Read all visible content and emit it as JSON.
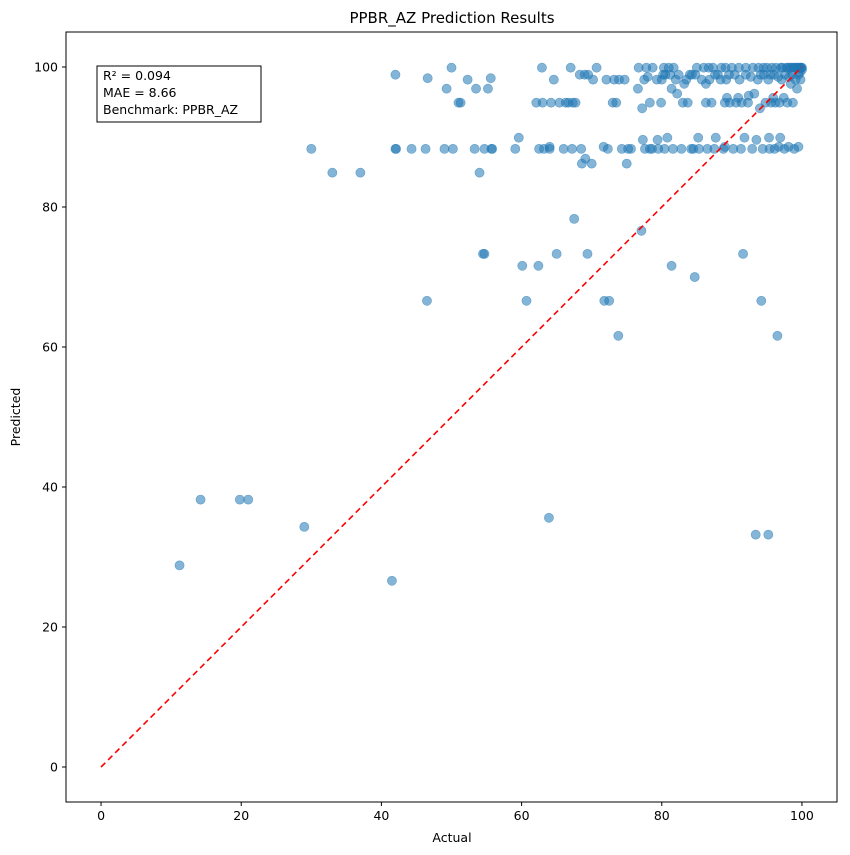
{
  "chart_data": {
    "type": "scatter",
    "title": "PPBR_AZ Prediction Results",
    "xlabel": "Actual",
    "ylabel": "Predicted",
    "xlim": [
      -5,
      105
    ],
    "ylim": [
      -5,
      105
    ],
    "xticks": [
      0,
      20,
      40,
      60,
      80,
      100
    ],
    "yticks": [
      0,
      20,
      40,
      60,
      80,
      100
    ],
    "grid": false,
    "point_color": "#1f77b4",
    "reference_line": {
      "style": "dashed",
      "color": "#ff0000",
      "from": [
        0,
        0
      ],
      "to": [
        100,
        100
      ]
    },
    "annotation": [
      "R² = 0.094",
      "MAE = 8.66",
      "Benchmark: PPBR_AZ"
    ],
    "points": [
      [
        11.2,
        28.8
      ],
      [
        14.2,
        38.2
      ],
      [
        19.8,
        38.2
      ],
      [
        21.0,
        38.2
      ],
      [
        29.0,
        34.3
      ],
      [
        30.0,
        88.3
      ],
      [
        33.0,
        84.9
      ],
      [
        37.0,
        84.9
      ],
      [
        41.5,
        26.6
      ],
      [
        42.0,
        98.9
      ],
      [
        42.0,
        88.3
      ],
      [
        42.1,
        88.3
      ],
      [
        44.3,
        88.3
      ],
      [
        46.3,
        88.3
      ],
      [
        46.5,
        66.6
      ],
      [
        46.6,
        98.4
      ],
      [
        49.0,
        88.3
      ],
      [
        49.3,
        96.9
      ],
      [
        50.0,
        99.9
      ],
      [
        50.2,
        88.3
      ],
      [
        51.0,
        94.9
      ],
      [
        51.3,
        94.9
      ],
      [
        52.3,
        98.2
      ],
      [
        53.3,
        88.3
      ],
      [
        53.5,
        96.9
      ],
      [
        54.0,
        84.9
      ],
      [
        54.5,
        73.3
      ],
      [
        54.7,
        73.3
      ],
      [
        54.7,
        88.3
      ],
      [
        55.2,
        96.9
      ],
      [
        55.6,
        98.4
      ],
      [
        55.7,
        88.3
      ],
      [
        55.8,
        88.3
      ],
      [
        59.1,
        88.3
      ],
      [
        59.6,
        89.9
      ],
      [
        60.1,
        71.6
      ],
      [
        60.7,
        66.6
      ],
      [
        62.1,
        94.9
      ],
      [
        62.4,
        71.6
      ],
      [
        62.5,
        88.3
      ],
      [
        62.9,
        99.9
      ],
      [
        63.0,
        94.9
      ],
      [
        63.2,
        88.3
      ],
      [
        63.9,
        35.6
      ],
      [
        64.0,
        88.6
      ],
      [
        64.0,
        88.3
      ],
      [
        64.2,
        94.9
      ],
      [
        64.6,
        98.2
      ],
      [
        65.0,
        73.3
      ],
      [
        65.4,
        94.9
      ],
      [
        66.0,
        88.3
      ],
      [
        66.3,
        94.9
      ],
      [
        66.7,
        94.9
      ],
      [
        67.0,
        99.9
      ],
      [
        67.2,
        88.3
      ],
      [
        67.3,
        94.9
      ],
      [
        67.5,
        78.3
      ],
      [
        67.7,
        94.9
      ],
      [
        68.3,
        98.9
      ],
      [
        68.5,
        88.3
      ],
      [
        68.6,
        86.2
      ],
      [
        69.0,
        98.9
      ],
      [
        69.1,
        86.9
      ],
      [
        69.4,
        73.3
      ],
      [
        69.5,
        98.9
      ],
      [
        70.0,
        86.2
      ],
      [
        70.2,
        98.2
      ],
      [
        70.7,
        99.9
      ],
      [
        71.7,
        88.6
      ],
      [
        71.8,
        66.6
      ],
      [
        72.1,
        98.2
      ],
      [
        72.3,
        88.3
      ],
      [
        72.5,
        66.6
      ],
      [
        73.0,
        94.9
      ],
      [
        73.2,
        98.2
      ],
      [
        73.5,
        94.9
      ],
      [
        73.8,
        61.6
      ],
      [
        73.9,
        98.2
      ],
      [
        74.3,
        88.3
      ],
      [
        74.7,
        98.2
      ],
      [
        75.0,
        86.2
      ],
      [
        75.2,
        88.3
      ],
      [
        75.6,
        88.3
      ],
      [
        76.6,
        96.9
      ],
      [
        76.7,
        99.9
      ],
      [
        77.1,
        76.6
      ],
      [
        77.2,
        94.1
      ],
      [
        77.3,
        89.6
      ],
      [
        77.5,
        98.2
      ],
      [
        77.6,
        88.3
      ],
      [
        77.8,
        99.9
      ],
      [
        78.0,
        98.6
      ],
      [
        78.3,
        88.3
      ],
      [
        78.3,
        94.9
      ],
      [
        78.6,
        88.3
      ],
      [
        78.7,
        99.9
      ],
      [
        79.3,
        98.2
      ],
      [
        79.4,
        89.6
      ],
      [
        79.5,
        88.3
      ],
      [
        79.9,
        94.9
      ],
      [
        80.0,
        98.2
      ],
      [
        80.2,
        98.9
      ],
      [
        80.3,
        99.9
      ],
      [
        80.4,
        88.3
      ],
      [
        80.5,
        98.9
      ],
      [
        80.8,
        89.9
      ],
      [
        81.0,
        99.9
      ],
      [
        81.2,
        98.9
      ],
      [
        81.4,
        96.9
      ],
      [
        81.4,
        71.6
      ],
      [
        81.6,
        88.3
      ],
      [
        81.7,
        99.9
      ],
      [
        82.0,
        98.2
      ],
      [
        82.2,
        96.2
      ],
      [
        82.4,
        98.9
      ],
      [
        82.8,
        88.3
      ],
      [
        83.0,
        94.9
      ],
      [
        83.2,
        97.6
      ],
      [
        83.5,
        98.2
      ],
      [
        83.7,
        94.9
      ],
      [
        84.0,
        98.9
      ],
      [
        84.2,
        88.3
      ],
      [
        84.3,
        98.9
      ],
      [
        84.5,
        88.3
      ],
      [
        84.7,
        70.0
      ],
      [
        84.8,
        98.9
      ],
      [
        85.0,
        99.9
      ],
      [
        85.2,
        89.9
      ],
      [
        85.3,
        88.3
      ],
      [
        85.7,
        98.2
      ],
      [
        86.0,
        99.9
      ],
      [
        86.3,
        97.6
      ],
      [
        86.3,
        94.9
      ],
      [
        86.5,
        88.3
      ],
      [
        86.7,
        99.9
      ],
      [
        86.8,
        98.2
      ],
      [
        87.1,
        94.9
      ],
      [
        87.3,
        99.9
      ],
      [
        87.5,
        88.3
      ],
      [
        87.6,
        98.9
      ],
      [
        87.7,
        89.9
      ],
      [
        88.0,
        98.9
      ],
      [
        88.4,
        98.2
      ],
      [
        88.5,
        99.9
      ],
      [
        88.8,
        88.3
      ],
      [
        89.0,
        94.9
      ],
      [
        89.0,
        88.6
      ],
      [
        89.1,
        99.9
      ],
      [
        89.2,
        98.2
      ],
      [
        89.3,
        95.6
      ],
      [
        89.6,
        98.9
      ],
      [
        89.7,
        94.9
      ],
      [
        90.0,
        99.9
      ],
      [
        90.2,
        88.3
      ],
      [
        90.4,
        98.9
      ],
      [
        90.6,
        94.9
      ],
      [
        90.9,
        95.6
      ],
      [
        91.0,
        99.9
      ],
      [
        91.1,
        98.2
      ],
      [
        91.3,
        88.3
      ],
      [
        91.4,
        94.9
      ],
      [
        91.6,
        73.3
      ],
      [
        91.8,
        89.9
      ],
      [
        92.0,
        98.9
      ],
      [
        92.0,
        99.9
      ],
      [
        92.3,
        94.9
      ],
      [
        92.4,
        95.9
      ],
      [
        92.7,
        98.6
      ],
      [
        92.9,
        88.3
      ],
      [
        93.0,
        99.9
      ],
      [
        93.2,
        96.2
      ],
      [
        93.4,
        33.2
      ],
      [
        93.5,
        89.6
      ],
      [
        93.7,
        98.2
      ],
      [
        93.8,
        99.9
      ],
      [
        94.0,
        94.1
      ],
      [
        94.1,
        98.9
      ],
      [
        94.2,
        66.6
      ],
      [
        94.4,
        88.3
      ],
      [
        94.5,
        99.9
      ],
      [
        94.6,
        98.9
      ],
      [
        94.8,
        94.9
      ],
      [
        95.0,
        99.9
      ],
      [
        95.2,
        98.2
      ],
      [
        95.2,
        33.2
      ],
      [
        95.3,
        89.9
      ],
      [
        95.4,
        88.3
      ],
      [
        95.5,
        98.9
      ],
      [
        95.6,
        94.9
      ],
      [
        95.7,
        99.9
      ],
      [
        95.9,
        95.6
      ],
      [
        96.0,
        98.9
      ],
      [
        96.1,
        88.3
      ],
      [
        96.2,
        94.9
      ],
      [
        96.3,
        99.9
      ],
      [
        96.5,
        61.6
      ],
      [
        96.6,
        98.6
      ],
      [
        96.7,
        88.6
      ],
      [
        96.8,
        94.9
      ],
      [
        96.9,
        89.9
      ],
      [
        97.0,
        99.9
      ],
      [
        97.1,
        98.2
      ],
      [
        97.2,
        99.9
      ],
      [
        97.4,
        95.6
      ],
      [
        97.5,
        88.3
      ],
      [
        97.6,
        98.9
      ],
      [
        97.8,
        99.9
      ],
      [
        97.9,
        94.9
      ],
      [
        98.0,
        99.9
      ],
      [
        98.1,
        88.6
      ],
      [
        98.2,
        98.6
      ],
      [
        98.3,
        99.9
      ],
      [
        98.4,
        97.6
      ],
      [
        98.5,
        99.9
      ],
      [
        98.6,
        98.9
      ],
      [
        98.7,
        94.9
      ],
      [
        98.8,
        99.9
      ],
      [
        98.9,
        88.3
      ],
      [
        99.0,
        99.9
      ],
      [
        99.1,
        98.2
      ],
      [
        99.2,
        99.9
      ],
      [
        99.3,
        96.9
      ],
      [
        99.4,
        99.9
      ],
      [
        99.5,
        88.6
      ],
      [
        99.5,
        98.9
      ],
      [
        99.6,
        99.9
      ],
      [
        99.7,
        99.2
      ],
      [
        99.8,
        99.9
      ],
      [
        99.8,
        98.2
      ],
      [
        99.9,
        99.9
      ],
      [
        100.0,
        99.9
      ],
      [
        100.0,
        99.6
      ]
    ]
  }
}
